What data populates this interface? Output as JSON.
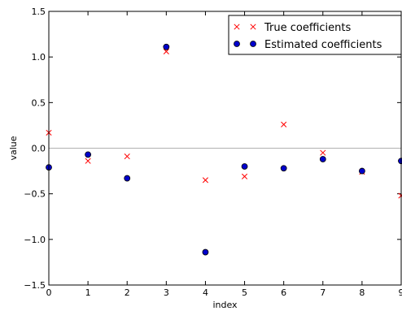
{
  "chart_data": {
    "type": "scatter",
    "xlabel": "index",
    "ylabel": "value",
    "xlim": [
      0,
      9
    ],
    "ylim": [
      -1.5,
      1.5
    ],
    "x_ticks": [
      0,
      1,
      2,
      3,
      4,
      5,
      6,
      7,
      8,
      9
    ],
    "x_tick_labels": [
      "0",
      "1",
      "2",
      "3",
      "4",
      "5",
      "6",
      "7",
      "8",
      "9"
    ],
    "y_ticks": [
      -1.5,
      -1.0,
      -0.5,
      0.0,
      0.5,
      1.0,
      1.5
    ],
    "y_tick_labels": [
      "−1.5",
      "−1.0",
      "−0.5",
      "0.0",
      "0.5",
      "1.0",
      "1.5"
    ],
    "zero_line": 0,
    "grid": false,
    "legend_position": "top-right",
    "series": [
      {
        "name": "True coefficients",
        "marker": "x",
        "color": "#ff0000",
        "x": [
          0,
          1,
          2,
          3,
          4,
          5,
          6,
          7,
          8,
          9
        ],
        "y": [
          0.17,
          -0.14,
          -0.09,
          1.06,
          -0.35,
          -0.31,
          0.26,
          -0.05,
          -0.26,
          -0.52
        ]
      },
      {
        "name": "Estimated coefficients",
        "marker": "circle",
        "color": "#0000cc",
        "x": [
          0,
          1,
          2,
          3,
          4,
          5,
          6,
          7,
          8,
          9
        ],
        "y": [
          -0.21,
          -0.07,
          -0.33,
          1.11,
          -1.14,
          -0.2,
          -0.22,
          -0.12,
          -0.25,
          -0.14
        ]
      }
    ]
  }
}
